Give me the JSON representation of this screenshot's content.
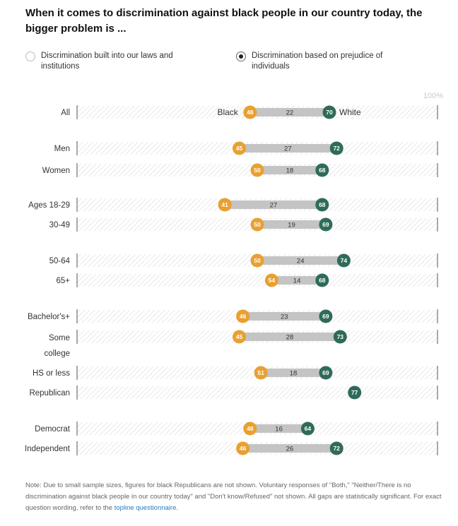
{
  "title": "When it comes to discrimination against black people in our country today, the bigger problem is ...",
  "legend": [
    {
      "label": "Discrimination built into our laws and institutions",
      "selected": false
    },
    {
      "label": "Discrimination based on prejudice of individuals",
      "selected": true
    }
  ],
  "colors": {
    "black": "#e8a030",
    "white": "#2f6b5a",
    "bar": "#c4c4c4",
    "hatch": "#d9d9d9"
  },
  "chart_data": {
    "type": "dot",
    "xlim": [
      0,
      100
    ],
    "max_label": "100%",
    "series_labels": {
      "black": "Black",
      "white": "White"
    },
    "rows": [
      {
        "label": "All",
        "black": 48,
        "white": 70,
        "gap": 22
      },
      {
        "label": "Men",
        "black": 45,
        "white": 72,
        "gap": 27
      },
      {
        "label": "Women",
        "black": 50,
        "white": 68,
        "gap": 18
      },
      {
        "label": "Ages 18-29",
        "black": 41,
        "white": 68,
        "gap": 27
      },
      {
        "label": "30-49",
        "black": 50,
        "white": 69,
        "gap": 19
      },
      {
        "label": "50-64",
        "black": 50,
        "white": 74,
        "gap": 24
      },
      {
        "label": "65+",
        "black": 54,
        "white": 68,
        "gap": 14
      },
      {
        "label": "Bachelor's+",
        "black": 46,
        "white": 69,
        "gap": 23
      },
      {
        "label": "Some college",
        "black": 45,
        "white": 73,
        "gap": 28
      },
      {
        "label": "HS or less",
        "black": 51,
        "white": 69,
        "gap": 18
      },
      {
        "label": "Republican",
        "black": null,
        "white": 77,
        "gap": null
      },
      {
        "label": "Democrat",
        "black": 48,
        "white": 64,
        "gap": 16
      },
      {
        "label": "Independent",
        "black": 46,
        "white": 72,
        "gap": 26
      }
    ]
  },
  "note": {
    "text": "Note: Due to small sample sizes, figures for black Republicans are not shown. Voluntary responses of \"Both,\" \"Neither/There is no discrimination against black people in our country today\" and \"Don't know/Refused\" not shown. All gaps are statistically significant. For exact question wording, refer to the ",
    "link": "topline questionnaire",
    "end": "."
  }
}
